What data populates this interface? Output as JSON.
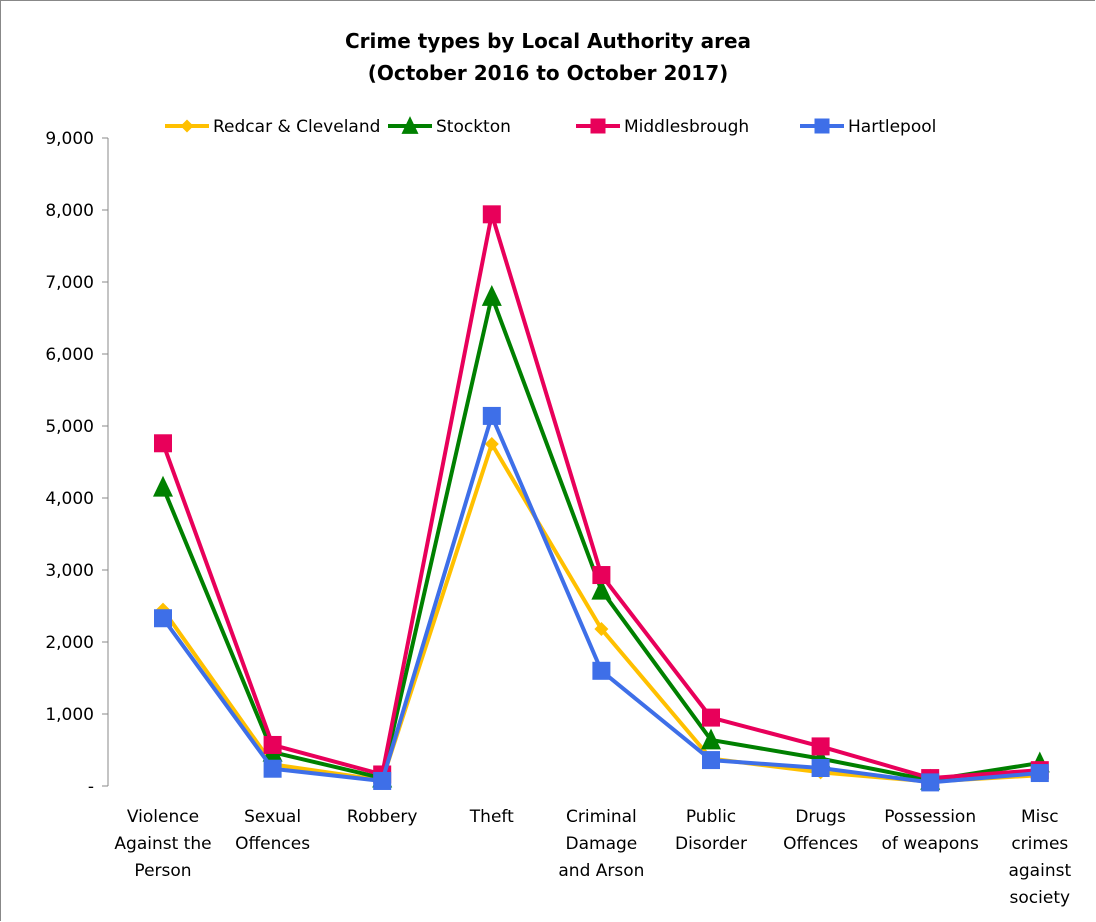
{
  "chart_data": {
    "type": "line",
    "title": "Crime types by Local Authority area",
    "subtitle": "(October 2016 to October 2017)",
    "xlabel": "",
    "ylabel": "",
    "ylim": [
      0,
      9000
    ],
    "yticks": [
      {
        "value": 0,
        "label": "-"
      },
      {
        "value": 1000,
        "label": "1,000"
      },
      {
        "value": 2000,
        "label": "2,000"
      },
      {
        "value": 3000,
        "label": "3,000"
      },
      {
        "value": 4000,
        "label": "4,000"
      },
      {
        "value": 5000,
        "label": "5,000"
      },
      {
        "value": 6000,
        "label": "6,000"
      },
      {
        "value": 7000,
        "label": "7,000"
      },
      {
        "value": 8000,
        "label": "8,000"
      },
      {
        "value": 9000,
        "label": "9,000"
      }
    ],
    "grid": false,
    "legend_position": "top",
    "categories": [
      [
        "Violence",
        "Against the",
        "Person"
      ],
      [
        "Sexual",
        "Offences"
      ],
      [
        "Robbery"
      ],
      [
        "Theft"
      ],
      [
        "Criminal",
        "Damage",
        "and Arson"
      ],
      [
        "Public",
        "Disorder"
      ],
      [
        "Drugs",
        "Offences"
      ],
      [
        "Possession",
        "of weapons"
      ],
      [
        "Misc",
        "crimes",
        "against",
        "society"
      ]
    ],
    "series": [
      {
        "name": "Redcar & Cleveland",
        "color": "#FFC000",
        "marker": "diamond",
        "values": [
          2450,
          300,
          80,
          4750,
          2180,
          380,
          190,
          60,
          150
        ]
      },
      {
        "name": "Stockton",
        "color": "#008000",
        "marker": "triangle",
        "values": [
          4150,
          470,
          110,
          6800,
          2720,
          640,
          380,
          80,
          320
        ]
      },
      {
        "name": "Middlesbrough",
        "color": "#E8005A",
        "marker": "square",
        "values": [
          4760,
          570,
          160,
          7940,
          2930,
          950,
          550,
          110,
          220
        ]
      },
      {
        "name": "Hartlepool",
        "color": "#3E6FE8",
        "marker": "square",
        "values": [
          2330,
          240,
          70,
          5140,
          1600,
          360,
          250,
          50,
          180
        ]
      }
    ]
  }
}
